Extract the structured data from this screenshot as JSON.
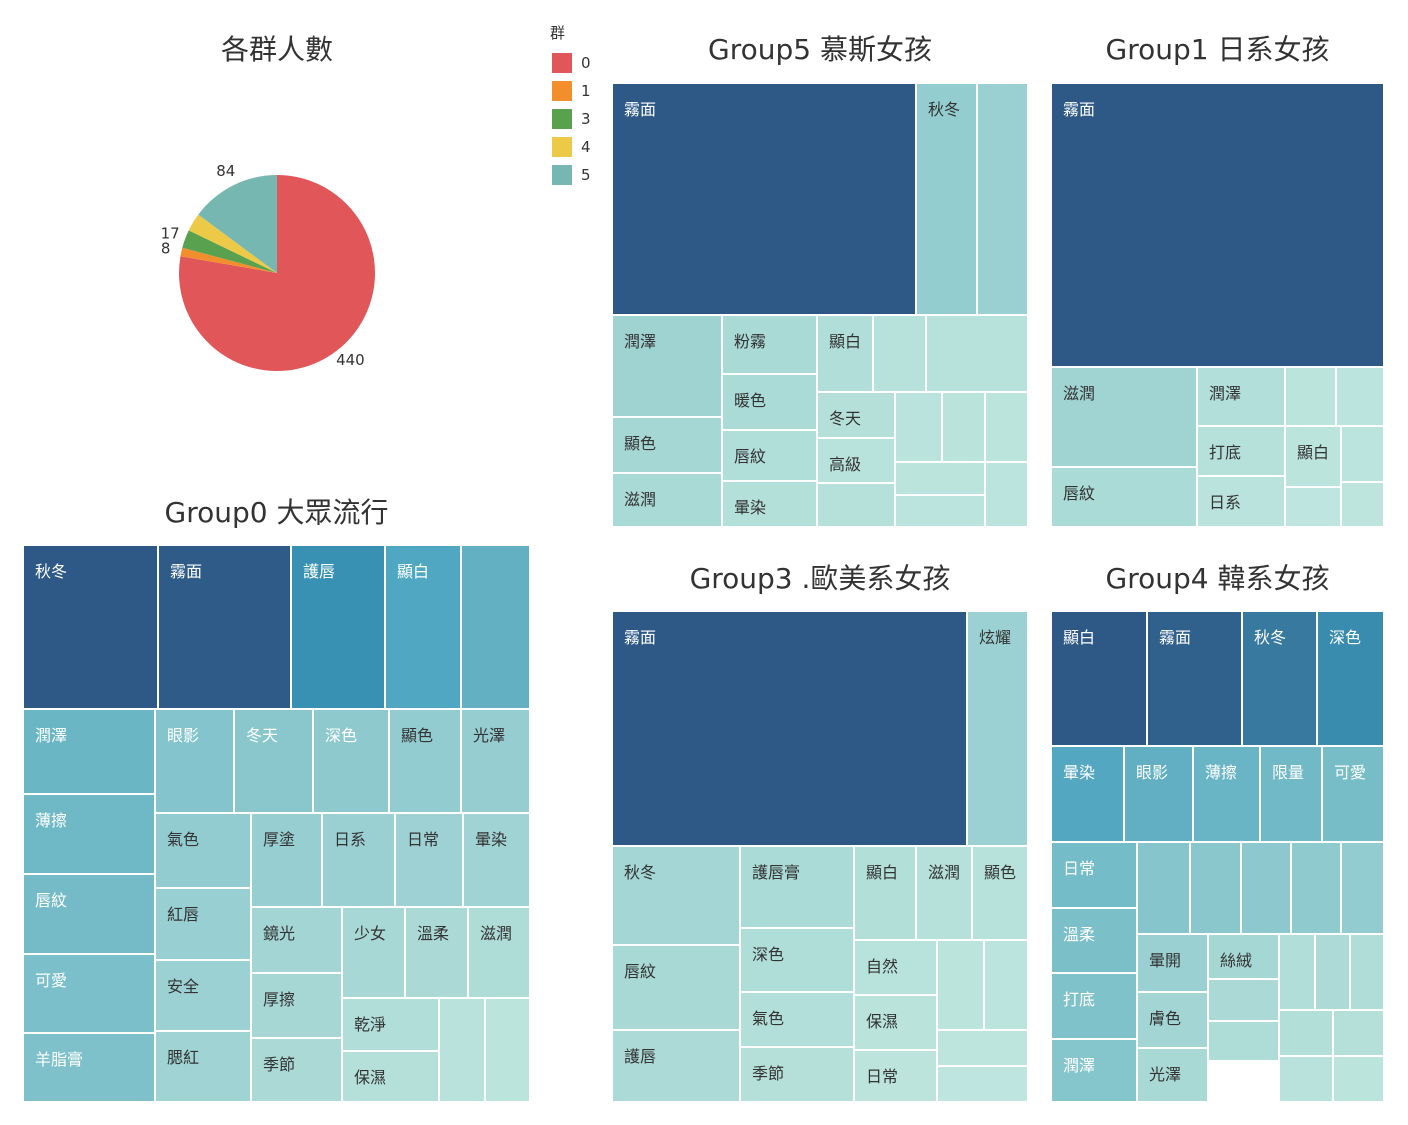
{
  "chart_data": [
    {
      "type": "pie",
      "title": "各群人數",
      "legend_title": "群",
      "legend_placement": "top-right",
      "slices": [
        {
          "name": "0",
          "value": 440,
          "color": "#e15759",
          "label": "440"
        },
        {
          "name": "1",
          "value": 8,
          "color": "#f28e2b",
          "label": "8"
        },
        {
          "name": "3",
          "value": 17,
          "color": "#59a14f",
          "label": "17"
        },
        {
          "name": "4",
          "value": 17,
          "color": "#edc948",
          "label": ""
        },
        {
          "name": "5",
          "value": 84,
          "color": "#76b7b2",
          "label": "84"
        }
      ]
    },
    {
      "type": "treemap",
      "title": "Group5 慕斯女孩",
      "cells": [
        {
          "label": "霧面",
          "color": "#2e5986"
        },
        {
          "label": "秋冬",
          "color": "#94cdd0"
        },
        {
          "label": "",
          "color": "#9bd0d2"
        },
        {
          "label": "潤澤",
          "color": "#9fd3d2"
        },
        {
          "label": "粉霧",
          "color": "#a9dad5"
        },
        {
          "label": "暖色",
          "color": "#abdbd6"
        },
        {
          "label": "唇紋",
          "color": "#b0ded8"
        },
        {
          "label": "暈染",
          "color": "#b4e0da"
        },
        {
          "label": "顯色",
          "color": "#a5d7d4"
        },
        {
          "label": "滋潤",
          "color": "#aadad5"
        },
        {
          "label": "顯白",
          "color": "#b1ded8"
        },
        {
          "label": "冬天",
          "color": "#b5e0da"
        },
        {
          "label": "高級",
          "color": "#b8e2dc"
        },
        {
          "label": "",
          "color": "#b5e1da"
        },
        {
          "label": "",
          "color": "#b7e2db"
        },
        {
          "label": "",
          "color": "#b7e1db"
        },
        {
          "label": "",
          "color": "#b9e3dc"
        },
        {
          "label": "",
          "color": "#bae3dc"
        },
        {
          "label": "",
          "color": "#bbe4dd"
        },
        {
          "label": "",
          "color": "#bbe4dd"
        },
        {
          "label": "",
          "color": "#bce4de"
        },
        {
          "label": "",
          "color": "#bce4de"
        },
        {
          "label": "",
          "color": "#bee5de"
        }
      ]
    },
    {
      "type": "treemap",
      "title": "Group1 日系女孩",
      "cells": [
        {
          "label": "霧面",
          "color": "#2e5986"
        },
        {
          "label": "滋潤",
          "color": "#a0d4d3"
        },
        {
          "label": "唇紋",
          "color": "#abdbd6"
        },
        {
          "label": "潤澤",
          "color": "#b2dfd9"
        },
        {
          "label": "打底",
          "color": "#b6e1db"
        },
        {
          "label": "日系",
          "color": "#b9e3dc"
        },
        {
          "label": "",
          "color": "#bbe4dd"
        },
        {
          "label": "",
          "color": "#bce4de"
        },
        {
          "label": "顯白",
          "color": "#bbe4dd"
        },
        {
          "label": "",
          "color": "#bce4de"
        },
        {
          "label": "",
          "color": "#bde5de"
        },
        {
          "label": "",
          "color": "#bee5df"
        },
        {
          "label": "",
          "color": "#bfe6df"
        }
      ]
    },
    {
      "type": "treemap",
      "title": "Group0 大眾流行",
      "cells": [
        {
          "label": "秋冬",
          "color": "#2e5986"
        },
        {
          "label": "霧面",
          "color": "#2f5b88"
        },
        {
          "label": "護唇",
          "color": "#3891b2"
        },
        {
          "label": "顯白",
          "color": "#4fa7c2"
        },
        {
          "label": "",
          "color": "#62b0c2"
        },
        {
          "label": "潤澤",
          "color": "#6ab6c4"
        },
        {
          "label": "薄擦",
          "color": "#6fb8c6"
        },
        {
          "label": "唇紋",
          "color": "#74bbc7"
        },
        {
          "label": "可愛",
          "color": "#7abfc9"
        },
        {
          "label": "羊脂膏",
          "color": "#7ec1ca"
        },
        {
          "label": "眼影",
          "color": "#84c4cc"
        },
        {
          "label": "冬天",
          "color": "#89c7cd"
        },
        {
          "label": "深色",
          "color": "#8ec9ce"
        },
        {
          "label": "顯色",
          "color": "#92cbd0"
        },
        {
          "label": "光澤",
          "color": "#95cdd0"
        },
        {
          "label": "氣色",
          "color": "#93ccd0"
        },
        {
          "label": "紅唇",
          "color": "#98cfd2"
        },
        {
          "label": "安全",
          "color": "#9cd1d3"
        },
        {
          "label": "腮紅",
          "color": "#a0d3d3"
        },
        {
          "label": "厚塗",
          "color": "#97ced1"
        },
        {
          "label": "日系",
          "color": "#9ad0d2"
        },
        {
          "label": "日常",
          "color": "#9dd1d3"
        },
        {
          "label": "暈染",
          "color": "#a0d3d3"
        },
        {
          "label": "鏡光",
          "color": "#a2d5d4"
        },
        {
          "label": "厚擦",
          "color": "#a6d7d5"
        },
        {
          "label": "季節",
          "color": "#aad9d6"
        },
        {
          "label": "少女",
          "color": "#a8d8d5"
        },
        {
          "label": "溫柔",
          "color": "#abdad6"
        },
        {
          "label": "滋潤",
          "color": "#aedcd7"
        },
        {
          "label": "乾淨",
          "color": "#b1ded9"
        },
        {
          "label": "保濕",
          "color": "#b5e0da"
        },
        {
          "label": "",
          "color": "#b8e2db"
        },
        {
          "label": "",
          "color": "#bbe4dd"
        }
      ]
    },
    {
      "type": "treemap",
      "title": "Group3 .歐美系女孩",
      "cells": [
        {
          "label": "霧面",
          "color": "#2e5986"
        },
        {
          "label": "炫耀",
          "color": "#9bd1d2"
        },
        {
          "label": "秋冬",
          "color": "#a3d6d4"
        },
        {
          "label": "唇紋",
          "color": "#a8d9d5"
        },
        {
          "label": "護唇",
          "color": "#acdbd7"
        },
        {
          "label": "護唇膏",
          "color": "#abdbd6"
        },
        {
          "label": "深色",
          "color": "#afddd8"
        },
        {
          "label": "氣色",
          "color": "#b2dfd9"
        },
        {
          "label": "季節",
          "color": "#b5e0da"
        },
        {
          "label": "顯白",
          "color": "#b3dfd9"
        },
        {
          "label": "滋潤",
          "color": "#b5e1da"
        },
        {
          "label": "顯色",
          "color": "#b7e2db"
        },
        {
          "label": "自然",
          "color": "#b8e2dc"
        },
        {
          "label": "保濕",
          "color": "#bae3dc"
        },
        {
          "label": "日常",
          "color": "#bce4dd"
        },
        {
          "label": "",
          "color": "#bbe4dd"
        },
        {
          "label": "",
          "color": "#bce4de"
        },
        {
          "label": "",
          "color": "#bde5de"
        },
        {
          "label": "",
          "color": "#bee5df"
        }
      ]
    },
    {
      "type": "treemap",
      "title": "Group4 韓系女孩",
      "cells": [
        {
          "label": "顯白",
          "color": "#2e5986"
        },
        {
          "label": "霧面",
          "color": "#30608c"
        },
        {
          "label": "秋冬",
          "color": "#37799f"
        },
        {
          "label": "深色",
          "color": "#3a8cae"
        },
        {
          "label": "暈染",
          "color": "#53a7c0"
        },
        {
          "label": "眼影",
          "color": "#62afc3"
        },
        {
          "label": "薄擦",
          "color": "#6ab5c5"
        },
        {
          "label": "限量",
          "color": "#71b9c6"
        },
        {
          "label": "可愛",
          "color": "#77bdc8"
        },
        {
          "label": "日常",
          "color": "#74bcc7"
        },
        {
          "label": "溫柔",
          "color": "#7bbfc9"
        },
        {
          "label": "打底",
          "color": "#80c2ca"
        },
        {
          "label": "潤澤",
          "color": "#85c5cc"
        },
        {
          "label": "",
          "color": "#86c5cc"
        },
        {
          "label": "",
          "color": "#89c7cd"
        },
        {
          "label": "",
          "color": "#8cc8ce"
        },
        {
          "label": "",
          "color": "#8fcacf"
        },
        {
          "label": "",
          "color": "#92cbd0"
        },
        {
          "label": "暈開",
          "color": "#9ad0d2"
        },
        {
          "label": "膚色",
          "color": "#a2d5d4"
        },
        {
          "label": "光澤",
          "color": "#a8d9d5"
        },
        {
          "label": "絲絨",
          "color": "#a5d7d4"
        },
        {
          "label": "",
          "color": "#aad9d6"
        },
        {
          "label": "",
          "color": "#aedcd7"
        },
        {
          "label": "",
          "color": "#b1ded8"
        },
        {
          "label": "",
          "color": "#add9d6"
        },
        {
          "label": "",
          "color": "#b0ddd8"
        },
        {
          "label": "",
          "color": "#b3dfd9"
        },
        {
          "label": "",
          "color": "#b5e0da"
        },
        {
          "label": "",
          "color": "#b8e2db"
        },
        {
          "label": "",
          "color": "#bbe4dd"
        }
      ]
    }
  ]
}
